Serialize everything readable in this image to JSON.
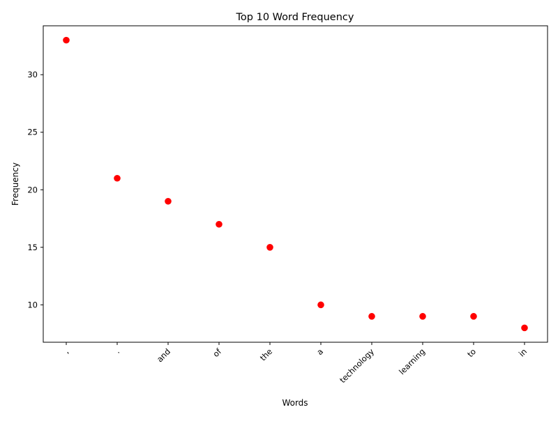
{
  "chart_data": {
    "type": "scatter",
    "title": "Top 10 Word Frequency",
    "xlabel": "Words",
    "ylabel": "Frequency",
    "categories": [
      ",",
      ".",
      "and",
      "of",
      "the",
      "a",
      "technology",
      "learning",
      "to",
      "in"
    ],
    "values": [
      33,
      21,
      19,
      17,
      15,
      10,
      9,
      9,
      9,
      8
    ],
    "ylim": [
      6.75,
      34.25
    ],
    "yticks": [
      10,
      15,
      20,
      25,
      30
    ],
    "marker_color": "#ff0000",
    "grid": false,
    "xtick_rotation_deg": 45
  }
}
